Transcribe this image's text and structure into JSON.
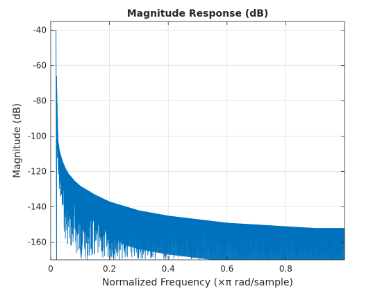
{
  "chart_data": {
    "type": "line",
    "title": "Magnitude Response (dB)",
    "xlabel": "Normalized Frequency (×π rad/sample)",
    "ylabel": "Magnitude (dB)",
    "xlim": [
      0,
      1
    ],
    "ylim": [
      -170,
      -35
    ],
    "xticks": [
      0,
      0.2,
      0.4,
      0.6,
      0.8
    ],
    "xtick_labels": [
      "0",
      "0.2",
      "0.4",
      "0.6",
      "0.8"
    ],
    "yticks": [
      -160,
      -140,
      -120,
      -100,
      -80,
      -60,
      -40
    ],
    "ytick_labels": [
      "-160",
      "-140",
      "-120",
      "-100",
      "-80",
      "-60",
      "-40"
    ],
    "grid": true,
    "series": [
      {
        "color": "#0072BD",
        "passband": {
          "x": [
            0,
            0.018
          ],
          "y": -40
        },
        "upper_envelope": {
          "x": [
            0.02,
            0.025,
            0.03,
            0.04,
            0.05,
            0.06,
            0.08,
            0.1,
            0.15,
            0.2,
            0.3,
            0.4,
            0.5,
            0.6,
            0.7,
            0.8,
            0.9,
            1.0
          ],
          "y": [
            -66,
            -102,
            -108,
            -114,
            -118,
            -121,
            -125,
            -128,
            -133,
            -137,
            -142,
            -145,
            -147,
            -149,
            -150,
            -151,
            -152,
            -152
          ]
        },
        "lower_envelope": {
          "x": [
            0.02,
            0.05,
            0.1,
            0.2,
            0.4,
            0.6,
            0.8,
            1.0
          ],
          "y": [
            -120,
            -160,
            -170,
            -170,
            -170,
            -170,
            -170,
            -170
          ]
        }
      }
    ]
  }
}
